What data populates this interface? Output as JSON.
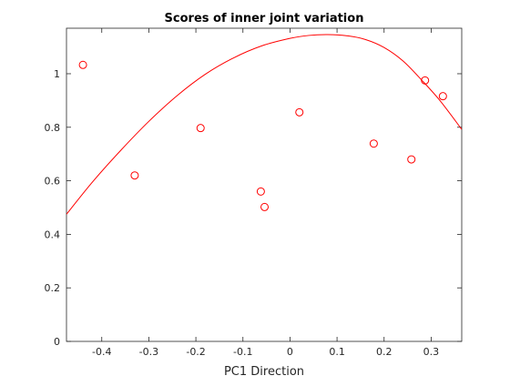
{
  "chart_data": {
    "type": "scatter",
    "title": "Scores of inner joint variation",
    "xlabel": "PC1 Direction",
    "ylabel": "",
    "xlim": [
      -0.475,
      0.365
    ],
    "ylim": [
      0,
      1.17
    ],
    "xticks": [
      -0.4,
      -0.3,
      -0.2,
      -0.1,
      0,
      0.1,
      0.2,
      0.3
    ],
    "xtick_labels": [
      "-0.4",
      "-0.3",
      "-0.2",
      "-0.1",
      "0",
      "0.1",
      "0.2",
      "0.3"
    ],
    "yticks": [
      0,
      0.2,
      0.4,
      0.6,
      0.8,
      1
    ],
    "ytick_labels": [
      "0",
      "0.2",
      "0.4",
      "0.6",
      "0.8",
      "1"
    ],
    "grid": false,
    "series": [
      {
        "type": "scatter",
        "marker": "circle-open",
        "color": "#ff0000",
        "x": [
          -0.44,
          -0.33,
          -0.19,
          -0.062,
          -0.054,
          0.02,
          0.178,
          0.258,
          0.287,
          0.325
        ],
        "y": [
          1.033,
          0.62,
          0.797,
          0.56,
          0.502,
          0.856,
          0.739,
          0.68,
          0.975,
          0.916
        ]
      },
      {
        "type": "line",
        "color": "#ff0000",
        "x": [
          -0.475,
          -0.42,
          -0.36,
          -0.3,
          -0.24,
          -0.18,
          -0.12,
          -0.06,
          0,
          0.04,
          0.08,
          0.12,
          0.16,
          0.2,
          0.24,
          0.28,
          0.32,
          0.365
        ],
        "y": [
          0.475,
          0.595,
          0.713,
          0.822,
          0.918,
          0.998,
          1.059,
          1.104,
          1.132,
          1.143,
          1.146,
          1.142,
          1.128,
          1.098,
          1.048,
          0.976,
          0.897,
          0.792
        ]
      }
    ]
  }
}
